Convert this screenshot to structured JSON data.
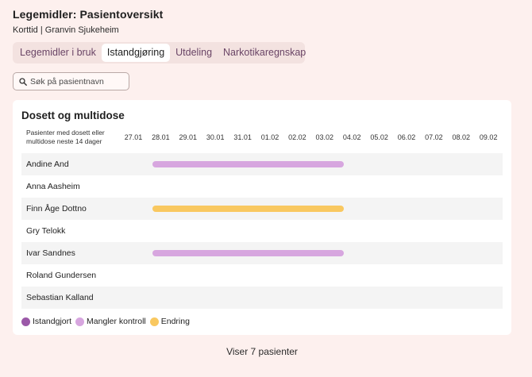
{
  "header": {
    "title": "Legemidler: Pasientoversikt",
    "subtitle": "Korttid | Granvin Sjukeheim"
  },
  "tabs": [
    {
      "label": "Legemidler i bruk",
      "active": false
    },
    {
      "label": "Istandgjøring",
      "active": true
    },
    {
      "label": "Utdeling",
      "active": false
    },
    {
      "label": "Narkotikaregnskap",
      "active": false
    }
  ],
  "search": {
    "placeholder": "Søk på pasientnavn",
    "value": ""
  },
  "card": {
    "title": "Dosett og multidose",
    "column_header": "Pasienter med dosett eller multidose neste 14 dager",
    "dates": [
      "27.01",
      "28.01",
      "29.01",
      "30.01",
      "31.01",
      "01.02",
      "02.02",
      "03.02",
      "04.02",
      "05.02",
      "06.02",
      "07.02",
      "08.02",
      "09.02"
    ],
    "patients": [
      {
        "name": "Andine And",
        "status": "Mangler kontroll",
        "from": "28.01",
        "to": "04.02"
      },
      {
        "name": "Anna Aasheim",
        "status": null
      },
      {
        "name": "Finn Åge Dottno",
        "status": "Endring",
        "from": "28.01",
        "to": "04.02"
      },
      {
        "name": "Gry Telokk",
        "status": null
      },
      {
        "name": "Ivar Sandnes",
        "status": "Mangler kontroll",
        "from": "28.01",
        "to": "04.02"
      },
      {
        "name": "Roland Gundersen",
        "status": null
      },
      {
        "name": "Sebastian Kalland",
        "status": null
      }
    ],
    "legend": [
      {
        "label": "Istandgjort",
        "color": "#9b59a8"
      },
      {
        "label": "Mangler kontroll",
        "color": "#d7a6df"
      },
      {
        "label": "Endring",
        "color": "#f9c860"
      }
    ]
  },
  "footer": {
    "text": "Viser 7 pasienter"
  }
}
